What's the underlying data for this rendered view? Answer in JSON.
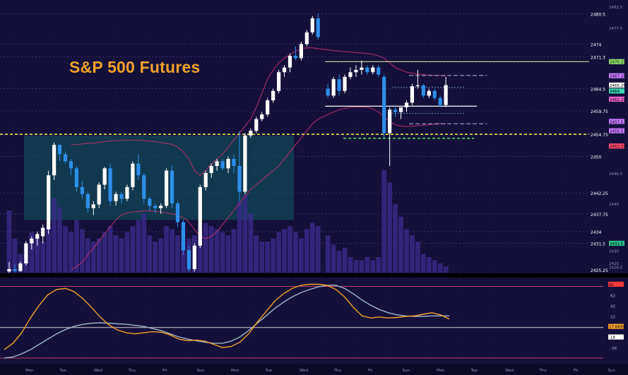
{
  "chart_data": {
    "type": "candlestick",
    "title": "S&P 500 Futures",
    "colors": {
      "background": "#14103a",
      "up_candle": "#ffffff",
      "down_candle": "#2e8fea",
      "volume": "#3a2a8a",
      "teal_zone": "#0f5a5e",
      "orange_line": "#f2a129",
      "slate_line": "#9fb6c8",
      "yellow_dashed": "#e8e04a",
      "green_dashed": "#56d656"
    },
    "price_axis": {
      "ylim": [
        2425.25,
        2482.5
      ],
      "ticks": [
        "2482.5",
        "2480.5",
        "2477.5",
        "2474",
        "2471.3",
        "2464.5",
        "2459.75",
        "2457.5",
        "2454.75",
        "2450",
        "2446.5",
        "2442.25",
        "2440",
        "2437.75",
        "2434",
        "2431.5",
        "2430",
        "2426.5",
        "2425",
        "2425.25"
      ],
      "gridlines": [
        2480.5,
        2474,
        2471.3,
        2464.5,
        2459.75,
        2454.75,
        2450,
        2442.25,
        2437.75,
        2434,
        2431.5
      ]
    },
    "price_badges": [
      {
        "value": 2470.25,
        "label": "2470.25",
        "color": "#8ee06a"
      },
      {
        "value": 2467.25,
        "label": "2467.25",
        "color": "#c87aff"
      },
      {
        "value": 2465.25,
        "label": "2465.25",
        "color": "#ffffff"
      },
      {
        "value": 2464,
        "label": "2464",
        "color": "#3ad6b4"
      },
      {
        "value": 2462.25,
        "label": "2462.25",
        "color": "#f060d0"
      },
      {
        "value": 2457.5,
        "label": "2457.5",
        "color": "#c87aff"
      },
      {
        "value": 2455.5,
        "label": "2455.5",
        "color": "#c87aff"
      },
      {
        "value": 2452.25,
        "label": "2452.25",
        "color": "#ff4a6a"
      },
      {
        "value": 2431.5,
        "label": "2431.5",
        "color": "#26c08a"
      }
    ],
    "key_levels": [
      {
        "value": 2470.25,
        "style": "solid",
        "color": "#cfe0a0"
      },
      {
        "value": 2460.75,
        "style": "solid",
        "color": "#ffffff"
      },
      {
        "value": 2454.75,
        "style": "dashed",
        "color": "#e8e04a"
      },
      {
        "value": 2453.9,
        "style": "dashed",
        "color": "#56d656"
      }
    ],
    "candles": [
      [
        2425.5,
        2427.5,
        2425.2,
        2426.0
      ],
      [
        2426.0,
        2427.0,
        2425.3,
        2425.6
      ],
      [
        2425.6,
        2427.6,
        2425.4,
        2427.2
      ],
      [
        2427.2,
        2432.0,
        2426.8,
        2431.5
      ],
      [
        2431.5,
        2433.0,
        2430.2,
        2432.5
      ],
      [
        2432.5,
        2434.0,
        2431.0,
        2433.5
      ],
      [
        2433.0,
        2435.5,
        2431.5,
        2434.8
      ],
      [
        2434.5,
        2447.0,
        2433.5,
        2446.0
      ],
      [
        2446.0,
        2453.0,
        2445.0,
        2452.5
      ],
      [
        2452.5,
        2452.8,
        2449.0,
        2450.5
      ],
      [
        2450.5,
        2451.0,
        2448.5,
        2449.0
      ],
      [
        2449.0,
        2449.5,
        2446.0,
        2447.5
      ],
      [
        2447.5,
        2448.0,
        2442.5,
        2443.5
      ],
      [
        2443.5,
        2444.8,
        2441.0,
        2442.0
      ],
      [
        2442.0,
        2442.5,
        2438.0,
        2439.0
      ],
      [
        2439.0,
        2440.5,
        2437.5,
        2439.8
      ],
      [
        2439.8,
        2444.5,
        2439.0,
        2444.0
      ],
      [
        2444.0,
        2447.8,
        2443.0,
        2447.5
      ],
      [
        2447.5,
        2448.5,
        2439.5,
        2440.5
      ],
      [
        2440.5,
        2442.5,
        2439.5,
        2442.0
      ],
      [
        2442.0,
        2442.5,
        2440.0,
        2441.0
      ],
      [
        2441.0,
        2444.0,
        2440.5,
        2443.5
      ],
      [
        2443.5,
        2449.0,
        2442.8,
        2448.5
      ],
      [
        2448.5,
        2450.5,
        2445.0,
        2446.0
      ],
      [
        2446.0,
        2446.5,
        2440.0,
        2441.0
      ],
      [
        2441.0,
        2441.5,
        2438.5,
        2439.5
      ],
      [
        2439.5,
        2440.0,
        2438.0,
        2439.0
      ],
      [
        2439.0,
        2440.0,
        2437.8,
        2439.5
      ],
      [
        2439.5,
        2447.5,
        2439.0,
        2447.0
      ],
      [
        2447.0,
        2448.0,
        2439.0,
        2440.0
      ],
      [
        2440.0,
        2440.5,
        2435.0,
        2436.0
      ],
      [
        2436.0,
        2436.5,
        2429.0,
        2430.0
      ],
      [
        2430.0,
        2431.0,
        2425.5,
        2426.0
      ],
      [
        2426.0,
        2431.5,
        2425.5,
        2431.0
      ],
      [
        2431.0,
        2444.0,
        2430.5,
        2443.5
      ],
      [
        2443.5,
        2447.0,
        2442.8,
        2446.5
      ],
      [
        2446.5,
        2448.5,
        2445.5,
        2448.0
      ],
      [
        2448.0,
        2449.5,
        2447.0,
        2449.0
      ],
      [
        2449.0,
        2449.5,
        2447.0,
        2447.5
      ],
      [
        2447.5,
        2450.0,
        2446.5,
        2449.5
      ],
      [
        2449.5,
        2450.5,
        2446.5,
        2448.0
      ],
      [
        2448.0,
        2455.5,
        2440.5,
        2442.5
      ],
      [
        2442.5,
        2455.0,
        2442.0,
        2454.5
      ],
      [
        2454.5,
        2456.0,
        2454.0,
        2455.5
      ],
      [
        2455.5,
        2458.5,
        2455.0,
        2458.0
      ],
      [
        2458.0,
        2459.5,
        2457.5,
        2459.0
      ],
      [
        2459.0,
        2462.5,
        2458.5,
        2462.0
      ],
      [
        2462.0,
        2464.5,
        2461.5,
        2464.0
      ],
      [
        2464.0,
        2468.5,
        2463.5,
        2468.0
      ],
      [
        2468.0,
        2469.5,
        2467.0,
        2469.0
      ],
      [
        2469.0,
        2472.0,
        2468.0,
        2471.5
      ],
      [
        2471.5,
        2473.5,
        2470.5,
        2471.0
      ],
      [
        2471.0,
        2474.5,
        2470.5,
        2474.0
      ],
      [
        2474.0,
        2477.0,
        2473.5,
        2476.5
      ],
      [
        2476.5,
        2480.0,
        2476.0,
        2479.5
      ],
      [
        2479.5,
        2480.5,
        2475.0,
        2475.5
      ],
      [
        2464.5,
        2465.5,
        2462.5,
        2463.0
      ],
      [
        2463.0,
        2467.0,
        2462.5,
        2466.5
      ],
      [
        2466.5,
        2467.5,
        2463.0,
        2464.0
      ],
      [
        2464.0,
        2467.5,
        2463.5,
        2467.0
      ],
      [
        2467.0,
        2469.0,
        2466.5,
        2468.0
      ],
      [
        2468.0,
        2469.5,
        2467.0,
        2468.5
      ],
      [
        2468.5,
        2470.5,
        2467.5,
        2469.0
      ],
      [
        2469.0,
        2469.5,
        2467.5,
        2468.0
      ],
      [
        2468.0,
        2469.5,
        2467.5,
        2469.0
      ],
      [
        2469.0,
        2469.5,
        2467.0,
        2467.5
      ],
      [
        2467.0,
        2467.5,
        2454.0,
        2455.0
      ],
      [
        2455.0,
        2460.5,
        2448.0,
        2460.0
      ],
      [
        2460.0,
        2461.0,
        2458.5,
        2459.5
      ],
      [
        2459.5,
        2460.5,
        2458.0,
        2460.5
      ],
      [
        2460.5,
        2462.0,
        2459.5,
        2461.5
      ],
      [
        2461.5,
        2465.5,
        2461.0,
        2465.0
      ],
      [
        2465.0,
        2468.5,
        2464.5,
        2465.2
      ],
      [
        2465.2,
        2465.5,
        2462.5,
        2463.0
      ],
      [
        2463.0,
        2464.5,
        2462.5,
        2464.0
      ],
      [
        2464.0,
        2464.5,
        2462.0,
        2462.5
      ],
      [
        2462.5,
        2463.0,
        2460.5,
        2461.0
      ],
      [
        2461.0,
        2467.0,
        2460.5,
        2465.25
      ]
    ],
    "volume": [
      40,
      22,
      12,
      18,
      26,
      22,
      20,
      30,
      48,
      42,
      30,
      26,
      34,
      28,
      22,
      20,
      22,
      26,
      30,
      24,
      22,
      26,
      30,
      34,
      38,
      24,
      20,
      22,
      30,
      28,
      24,
      20,
      22,
      24,
      28,
      32,
      30,
      28,
      26,
      24,
      28,
      46,
      50,
      38,
      24,
      20,
      20,
      22,
      26,
      28,
      30,
      26,
      22,
      28,
      32,
      30,
      24,
      18,
      14,
      16,
      10,
      8,
      8,
      10,
      8,
      10,
      66,
      58,
      44,
      36,
      28,
      24,
      20,
      12,
      10,
      8,
      6,
      4
    ],
    "upper_band": [
      null,
      null,
      null,
      null,
      null,
      null,
      null,
      null,
      null,
      null,
      null,
      2452.5,
      2452.6,
      2452.7,
      2452.8,
      2452.9,
      2453.0,
      2453.2,
      2453.3,
      2453.4,
      2453.5,
      2453.5,
      2453.5,
      2453.5,
      2453.4,
      2453.3,
      2453.2,
      2453.0,
      2452.8,
      2452.6,
      2452.0,
      2451.0,
      2449.5,
      2447.0,
      2446.0,
      2447.0,
      2448.5,
      2449.5,
      2450.5,
      2452.0,
      2453.5,
      2455.0,
      2456.5,
      2458.0,
      2460.5,
      2463.5,
      2466.5,
      2468.5,
      2470.0,
      2471.0,
      2471.8,
      2472.5,
      2473.0,
      2473.2,
      2473.2,
      2473.0,
      2472.8,
      2472.6,
      2472.5,
      2472.4,
      2472.3,
      2472.2,
      2472.1,
      2472.0,
      2471.8,
      2471.5,
      2471.0,
      2470.0,
      2469.0,
      2468.5,
      2468.0,
      2467.8,
      2467.6,
      2467.5,
      2467.4,
      2467.3,
      2467.3,
      2467.2
    ],
    "lower_band": [
      null,
      null,
      null,
      null,
      null,
      null,
      null,
      null,
      null,
      null,
      null,
      2425.8,
      2426.5,
      2427.5,
      2429.0,
      2430.5,
      2432.0,
      2433.5,
      2435.0,
      2436.5,
      2437.5,
      2438.0,
      2438.2,
      2438.3,
      2438.4,
      2438.4,
      2438.3,
      2438.2,
      2438.0,
      2437.8,
      2437.5,
      2437.0,
      2436.0,
      2434.5,
      2433.0,
      2432.5,
      2433.0,
      2434.0,
      2435.5,
      2437.0,
      2438.5,
      2440.0,
      2441.5,
      2443.0,
      2444.0,
      2445.0,
      2446.0,
      2447.0,
      2448.0,
      2449.5,
      2451.0,
      2452.5,
      2454.0,
      2455.5,
      2457.0,
      2458.0,
      2459.0,
      2459.5,
      2460.0,
      2460.3,
      2460.5,
      2460.6,
      2460.6,
      2460.5,
      2460.2,
      2459.5,
      2458.5,
      2457.5,
      2456.8,
      2456.5,
      2456.4,
      2456.5,
      2456.6,
      2456.7,
      2456.8,
      2456.9,
      2457.0,
      2457.0
    ],
    "projection": {
      "upper": 2467.3,
      "lower": 2457.0,
      "mid_upper": 2464.8,
      "mid_lower": 2459.2
    },
    "oscillator": {
      "ticks": [
        "82",
        "62",
        "42",
        "22",
        "2",
        "-18",
        "-38"
      ],
      "badges": [
        {
          "value": 82,
          "label": "82",
          "color": "#ff3a3a"
        },
        {
          "value": 2,
          "label": "17.6699",
          "color": "#f2a129"
        },
        {
          "value": -18,
          "label": "-18",
          "color": "#ffffff"
        }
      ],
      "reference_lines": [
        {
          "value": 78,
          "color": "#c04060"
        },
        {
          "value": 0,
          "color": "#d0d0d0"
        },
        {
          "value": -58,
          "color": "#c04060"
        }
      ],
      "ylim": [
        -62,
        92
      ],
      "fast": [
        -42,
        -30,
        -10,
        18,
        42,
        62,
        72,
        74,
        68,
        55,
        38,
        20,
        5,
        -5,
        -10,
        -12,
        -10,
        -8,
        -9,
        -14,
        -22,
        -25,
        -24,
        -26,
        -32,
        -38,
        -36,
        -28,
        -12,
        10,
        30,
        50,
        64,
        74,
        80,
        82,
        82,
        80,
        72,
        58,
        38,
        22,
        18,
        20,
        18,
        19,
        21,
        22,
        25,
        28,
        24,
        16
      ],
      "slow": [
        -58,
        -56,
        -50,
        -42,
        -32,
        -22,
        -12,
        -4,
        2,
        6,
        8,
        9,
        8,
        7,
        6,
        4,
        2,
        -2,
        -6,
        -12,
        -18,
        -22,
        -25,
        -28,
        -30,
        -30,
        -26,
        -18,
        -6,
        8,
        22,
        36,
        48,
        58,
        66,
        72,
        77,
        80,
        80,
        74,
        64,
        52,
        42,
        34,
        28,
        24,
        22,
        21,
        21,
        22,
        22,
        22
      ]
    },
    "x_labels": [
      "Mon",
      "Tue",
      "Wed",
      "Thu",
      "Fri",
      "Sun",
      "Mon",
      "Tue",
      "Wed",
      "Thu",
      "Fri",
      "Sun",
      "Mon",
      "Tue",
      "Wed",
      "Thu",
      "Fri",
      "Sun",
      "Mon",
      "Tue",
      "Wed"
    ]
  }
}
